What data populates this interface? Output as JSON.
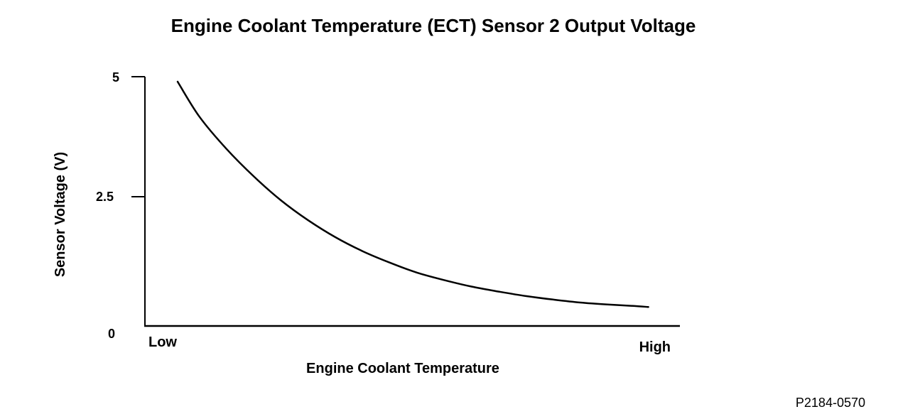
{
  "chart_data": {
    "type": "line",
    "title": "Engine Coolant Temperature (ECT) Sensor 2 Output Voltage",
    "xlabel": "Engine Coolant Temperature",
    "ylabel": "Sensor Voltage (V)",
    "x_tick_labels": {
      "low": "Low",
      "high": "High"
    },
    "y_ticks": [
      {
        "value": 5,
        "label": "5"
      },
      {
        "value": 2.5,
        "label": "2.5"
      },
      {
        "value": 0,
        "label": "0"
      }
    ],
    "xlim": [
      0,
      1
    ],
    "ylim": [
      0,
      5
    ],
    "series": [
      {
        "name": "Sensor 2 output voltage",
        "x": [
          0.06,
          0.1,
          0.15,
          0.2,
          0.25,
          0.3,
          0.35,
          0.4,
          0.45,
          0.5,
          0.55,
          0.6,
          0.65,
          0.7,
          0.75,
          0.8,
          0.85,
          0.9,
          0.925
        ],
        "values": [
          4.9,
          4.2,
          3.55,
          3.0,
          2.52,
          2.12,
          1.78,
          1.5,
          1.27,
          1.07,
          0.92,
          0.79,
          0.69,
          0.6,
          0.53,
          0.47,
          0.43,
          0.4,
          0.38
        ]
      }
    ]
  },
  "figure_id": "P2184-0570"
}
